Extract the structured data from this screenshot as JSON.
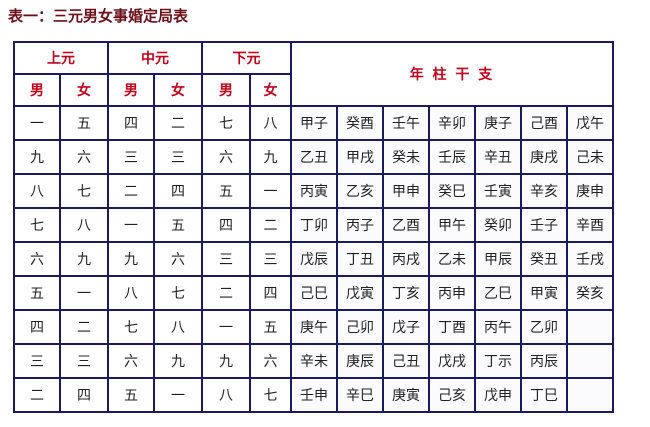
{
  "title": "表一：三元男女事婚定局表",
  "header": {
    "yuan": [
      "上元",
      "中元",
      "下元"
    ],
    "sex": [
      "男",
      "女",
      "男",
      "女",
      "男",
      "女"
    ],
    "ganzhi": "年 柱 干 支"
  },
  "colors": {
    "header_text": "#c0001a",
    "border": "#1a1a5e",
    "title": "#6b0f1a"
  },
  "rows": [
    {
      "gua": [
        "一",
        "五",
        "四",
        "二",
        "七",
        "八"
      ],
      "gz": [
        "甲子",
        "癸酉",
        "壬午",
        "辛卯",
        "庚子",
        "己酉",
        "戊午"
      ]
    },
    {
      "gua": [
        "九",
        "六",
        "三",
        "三",
        "六",
        "九"
      ],
      "gz": [
        "乙丑",
        "甲戌",
        "癸未",
        "壬辰",
        "辛丑",
        "庚戌",
        "己未"
      ]
    },
    {
      "gua": [
        "八",
        "七",
        "二",
        "四",
        "五",
        "一"
      ],
      "gz": [
        "丙寅",
        "乙亥",
        "甲申",
        "癸巳",
        "壬寅",
        "辛亥",
        "庚申"
      ]
    },
    {
      "gua": [
        "七",
        "八",
        "一",
        "五",
        "四",
        "二"
      ],
      "gz": [
        "丁卯",
        "丙子",
        "乙酉",
        "甲午",
        "癸卯",
        "壬子",
        "辛酉"
      ]
    },
    {
      "gua": [
        "六",
        "九",
        "九",
        "六",
        "三",
        "三"
      ],
      "gz": [
        "戊辰",
        "丁丑",
        "丙戌",
        "乙未",
        "甲辰",
        "癸丑",
        "壬戌"
      ]
    },
    {
      "gua": [
        "五",
        "一",
        "八",
        "七",
        "二",
        "四"
      ],
      "gz": [
        "己巳",
        "戊寅",
        "丁亥",
        "丙申",
        "乙巳",
        "甲寅",
        "癸亥"
      ]
    },
    {
      "gua": [
        "四",
        "二",
        "七",
        "八",
        "一",
        "五"
      ],
      "gz": [
        "庚午",
        "己卯",
        "戊子",
        "丁酉",
        "丙午",
        "乙卯",
        ""
      ]
    },
    {
      "gua": [
        "三",
        "三",
        "六",
        "九",
        "九",
        "六"
      ],
      "gz": [
        "辛未",
        "庚辰",
        "己丑",
        "戊戌",
        "丁示",
        "丙辰",
        ""
      ]
    },
    {
      "gua": [
        "二",
        "四",
        "五",
        "一",
        "八",
        "七"
      ],
      "gz": [
        "壬申",
        "辛巳",
        "庚寅",
        "己亥",
        "戊申",
        "丁巳",
        ""
      ]
    }
  ]
}
